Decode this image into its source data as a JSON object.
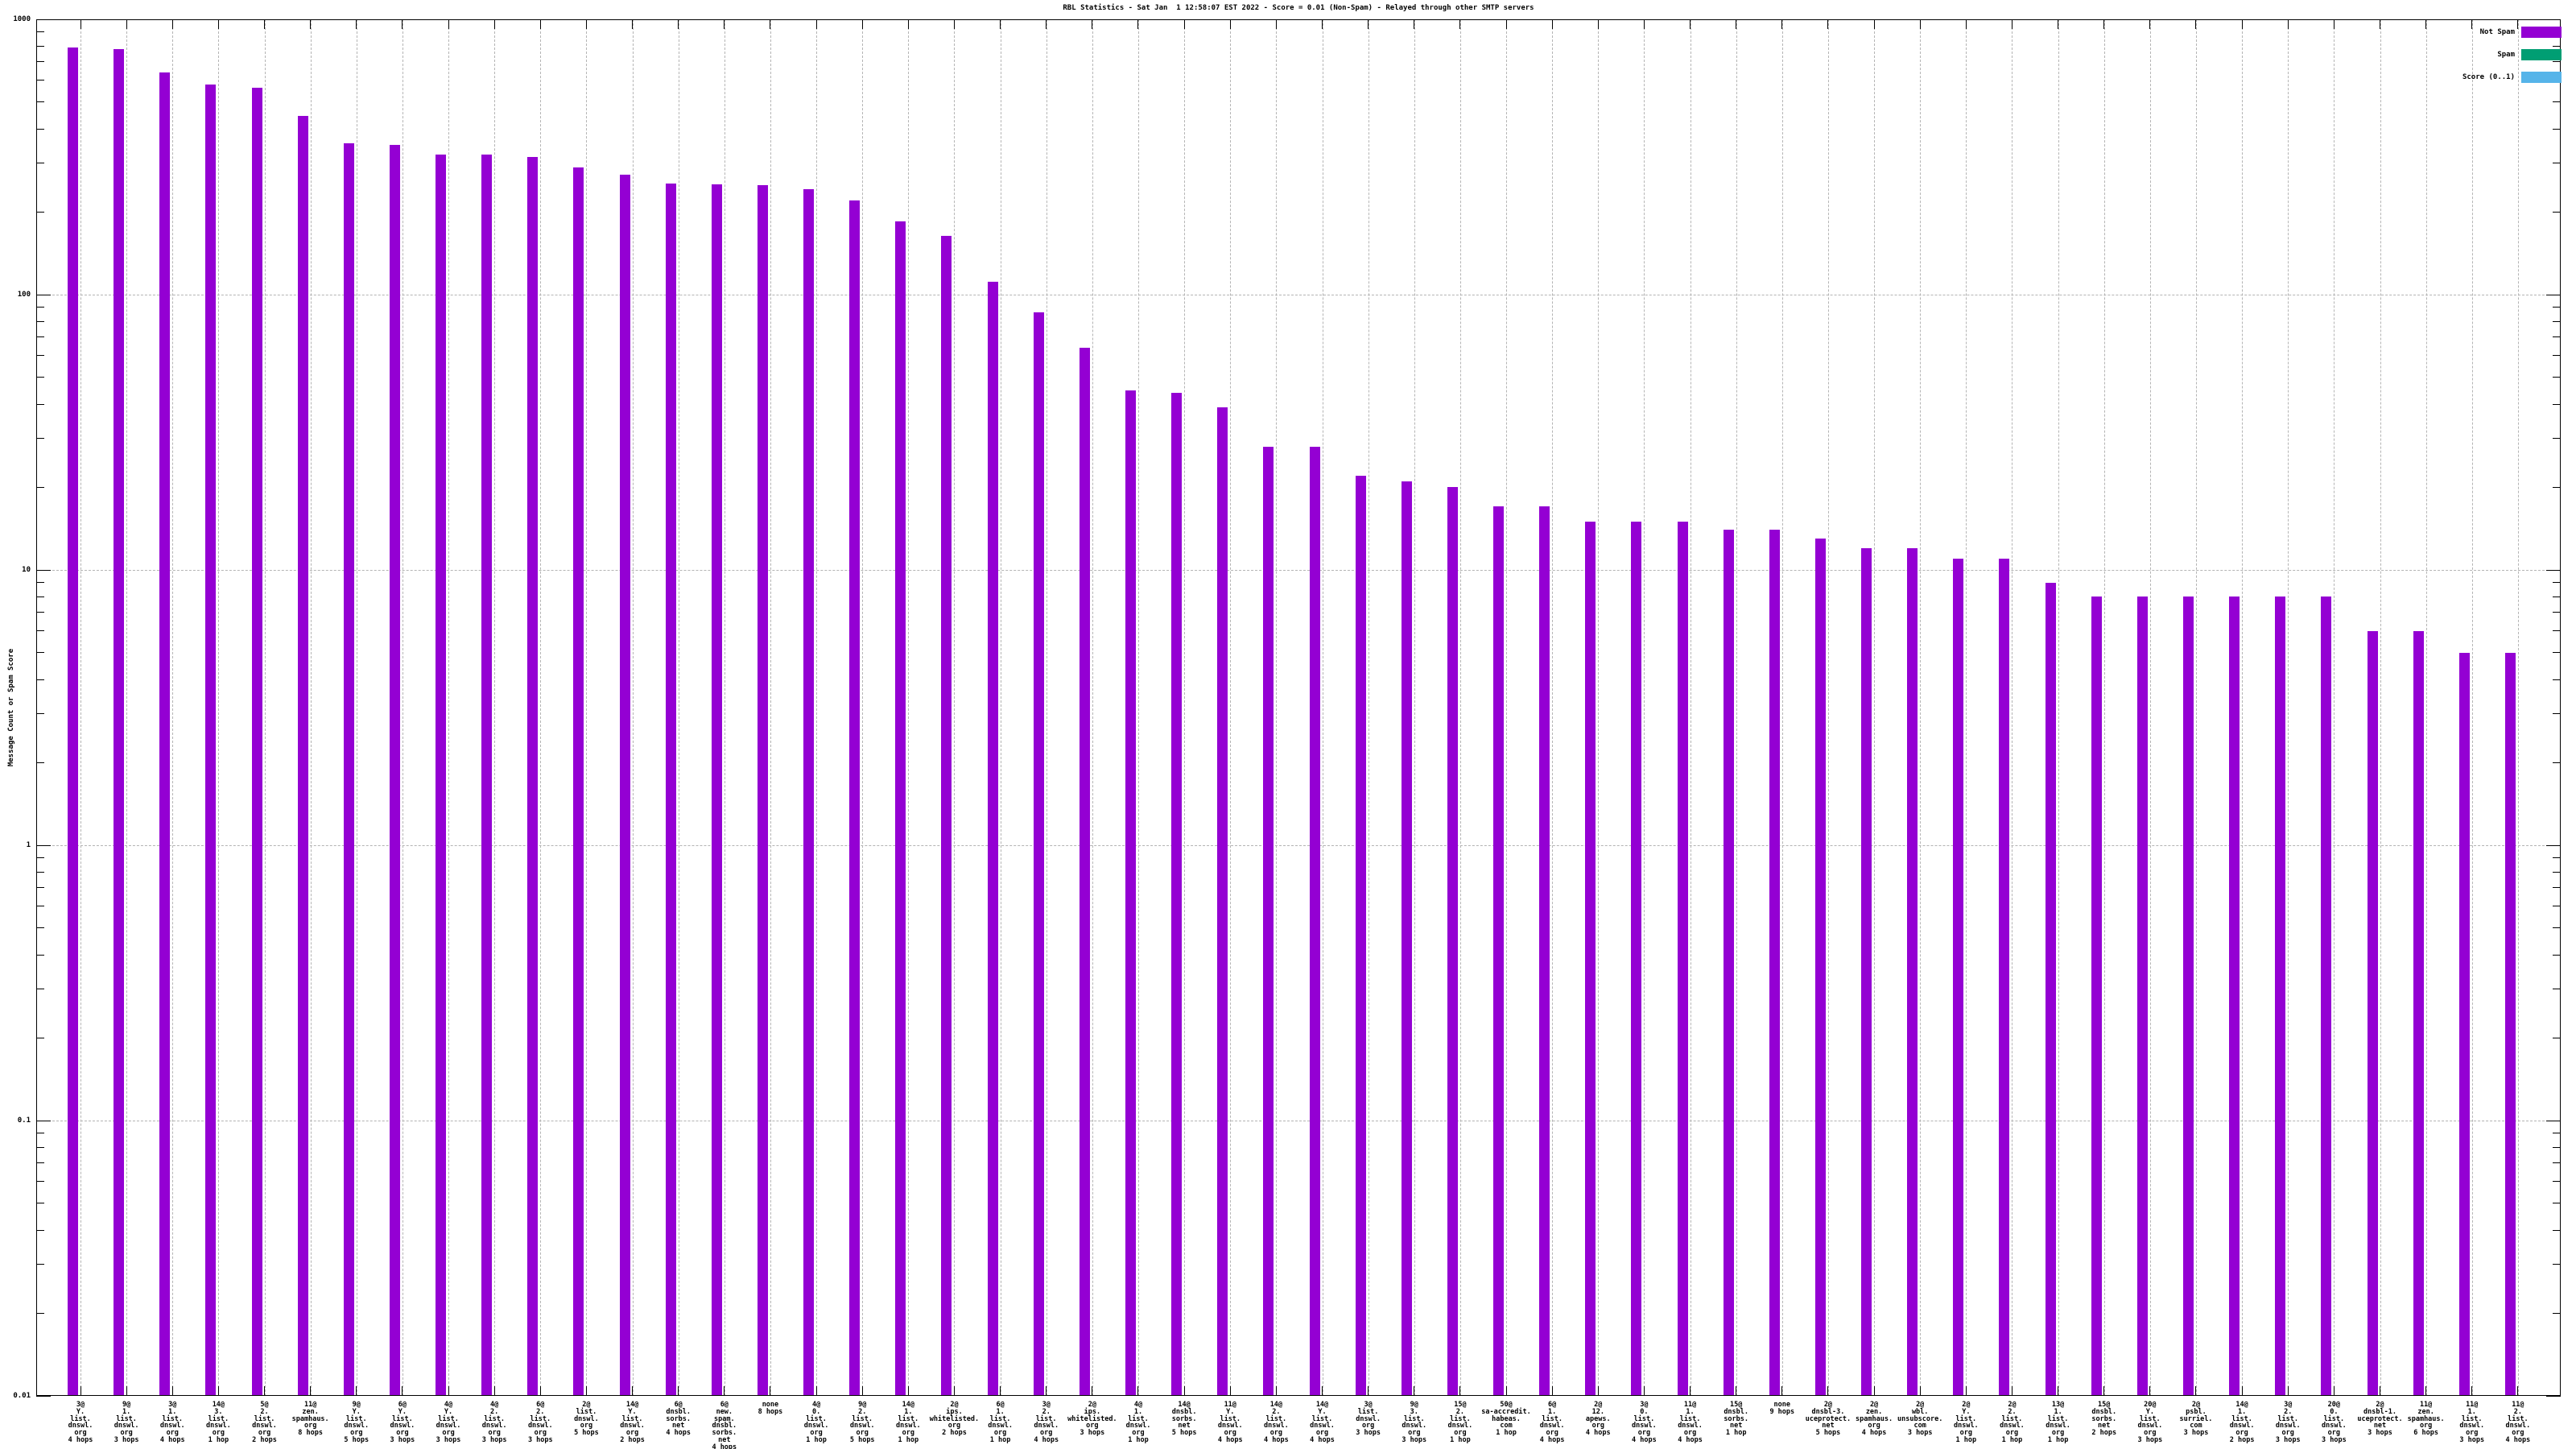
{
  "title": "RBL Statistics - Sat Jan  1 12:58:07 EST 2022 - Score = 0.01 (Non-Spam) - Relayed through other SMTP servers",
  "ylabel": "Message Count or Spam Score",
  "legend": [
    {
      "label": "Not Spam",
      "color": "#9400d3"
    },
    {
      "label": "Spam",
      "color": "#009e73"
    },
    {
      "label": "Score (0..1)",
      "color": "#56b4e9"
    }
  ],
  "chart_data": {
    "type": "bar",
    "yscale": "log",
    "ylim": [
      0.01,
      1000
    ],
    "ytick_labels": [
      "1000",
      "100",
      "10",
      "1",
      "0.1",
      "0.01"
    ],
    "grid": true,
    "legend_position": "top-right",
    "bar_color": "#9400d3",
    "series": [
      {
        "name": "Not Spam",
        "values": [
          790,
          780,
          640,
          580,
          565,
          445,
          355,
          350,
          323,
          322,
          316,
          290,
          273,
          253,
          252,
          250,
          242,
          220,
          185,
          164,
          111,
          86,
          64,
          45,
          44,
          39,
          28,
          28,
          22,
          21,
          20,
          17,
          17,
          15,
          15,
          15,
          14,
          14,
          13,
          12,
          12,
          11,
          11,
          9,
          8,
          8,
          8,
          8,
          8,
          8,
          6,
          6,
          5,
          5
        ]
      }
    ],
    "categories": [
      [
        "3@",
        "Y.",
        "list.",
        "dnswl.",
        "org",
        "4 hops"
      ],
      [
        "9@",
        "1.",
        "list.",
        "dnswl.",
        "org",
        "3 hops"
      ],
      [
        "3@",
        "1.",
        "list.",
        "dnswl.",
        "org",
        "4 hops"
      ],
      [
        "14@",
        "3.",
        "list.",
        "dnswl.",
        "org",
        "1 hop"
      ],
      [
        "5@",
        "2.",
        "list.",
        "dnswl.",
        "org",
        "2 hops"
      ],
      [
        "11@",
        "zen.",
        "spamhaus.",
        "org",
        "8 hops"
      ],
      [
        "9@",
        "Y.",
        "list.",
        "dnswl.",
        "org",
        "5 hops"
      ],
      [
        "6@",
        "Y.",
        "list.",
        "dnswl.",
        "org",
        "3 hops"
      ],
      [
        "4@",
        "Y.",
        "list.",
        "dnswl.",
        "org",
        "3 hops"
      ],
      [
        "4@",
        "2.",
        "list.",
        "dnswl.",
        "org",
        "3 hops"
      ],
      [
        "6@",
        "2.",
        "list.",
        "dnswl.",
        "org",
        "3 hops"
      ],
      [
        "2@",
        "list.",
        "dnswl.",
        "org",
        "5 hops"
      ],
      [
        "14@",
        "Y.",
        "list.",
        "dnswl.",
        "org",
        "2 hops"
      ],
      [
        "6@",
        "dnsbl.",
        "sorbs.",
        "net",
        "4 hops"
      ],
      [
        "6@",
        "new.",
        "spam.",
        "dnsbl.",
        "sorbs.",
        "net",
        "4 hops"
      ],
      [
        "none",
        "8 hops"
      ],
      [
        "4@",
        "0.",
        "list.",
        "dnswl.",
        "org",
        "1 hop"
      ],
      [
        "9@",
        "2.",
        "list.",
        "dnswl.",
        "org",
        "5 hops"
      ],
      [
        "14@",
        "1.",
        "list.",
        "dnswl.",
        "org",
        "1 hop"
      ],
      [
        "2@",
        "ips.",
        "whitelisted.",
        "org",
        "2 hops"
      ],
      [
        "6@",
        "1.",
        "list.",
        "dnswl.",
        "org",
        "1 hop"
      ],
      [
        "3@",
        "2.",
        "list.",
        "dnswl.",
        "org",
        "4 hops"
      ],
      [
        "2@",
        "ips.",
        "whitelisted.",
        "org",
        "3 hops"
      ],
      [
        "4@",
        "1.",
        "list.",
        "dnswl.",
        "org",
        "1 hop"
      ],
      [
        "14@",
        "dnsbl.",
        "sorbs.",
        "net",
        "5 hops"
      ],
      [
        "11@",
        "Y.",
        "list.",
        "dnswl.",
        "org",
        "4 hops"
      ],
      [
        "14@",
        "2.",
        "list.",
        "dnswl.",
        "org",
        "4 hops"
      ],
      [
        "14@",
        "Y.",
        "list.",
        "dnswl.",
        "org",
        "4 hops"
      ],
      [
        "3@",
        "list.",
        "dnswl.",
        "org",
        "3 hops"
      ],
      [
        "9@",
        "3.",
        "list.",
        "dnswl.",
        "org",
        "3 hops"
      ],
      [
        "15@",
        "2.",
        "list.",
        "dnswl.",
        "org",
        "1 hop"
      ],
      [
        "50@",
        "sa-accredit.",
        "habeas.",
        "com",
        "1 hop"
      ],
      [
        "6@",
        "1.",
        "list.",
        "dnswl.",
        "org",
        "4 hops"
      ],
      [
        "2@",
        "12.",
        "apews.",
        "org",
        "4 hops"
      ],
      [
        "3@",
        "0.",
        "list.",
        "dnswl.",
        "org",
        "4 hops"
      ],
      [
        "11@",
        "1.",
        "list.",
        "dnswl.",
        "org",
        "4 hops"
      ],
      [
        "15@",
        "dnsbl.",
        "sorbs.",
        "net",
        "1 hop"
      ],
      [
        "none",
        "9 hops"
      ],
      [
        "2@",
        "dnsbl-3.",
        "uceprotect.",
        "net",
        "5 hops"
      ],
      [
        "2@",
        "zen.",
        "spamhaus.",
        "org",
        "4 hops"
      ],
      [
        "2@",
        "wbl.",
        "unsubscore.",
        "com",
        "3 hops"
      ],
      [
        "2@",
        "Y.",
        "list.",
        "dnswl.",
        "org",
        "1 hop"
      ],
      [
        "2@",
        "2.",
        "list.",
        "dnswl.",
        "org",
        "1 hop"
      ],
      [
        "13@",
        "1.",
        "list.",
        "dnswl.",
        "org",
        "1 hop"
      ],
      [
        "15@",
        "dnsbl.",
        "sorbs.",
        "net",
        "2 hops"
      ],
      [
        "20@",
        "Y.",
        "list.",
        "dnswl.",
        "org",
        "3 hops"
      ],
      [
        "2@",
        "psbl.",
        "surriel.",
        "com",
        "3 hops"
      ],
      [
        "14@",
        "1.",
        "list.",
        "dnswl.",
        "org",
        "2 hops"
      ],
      [
        "3@",
        "2.",
        "list.",
        "dnswl.",
        "org",
        "3 hops"
      ],
      [
        "20@",
        "0.",
        "list.",
        "dnswl.",
        "org",
        "3 hops"
      ],
      [
        "2@",
        "dnsbl-1.",
        "uceprotect.",
        "net",
        "3 hops"
      ],
      [
        "11@",
        "zen.",
        "spamhaus.",
        "org",
        "6 hops"
      ],
      [
        "11@",
        "1.",
        "list.",
        "dnswl.",
        "org",
        "3 hops"
      ],
      [
        "11@",
        "2.",
        "list.",
        "dnswl.",
        "org",
        "4 hops"
      ]
    ]
  }
}
